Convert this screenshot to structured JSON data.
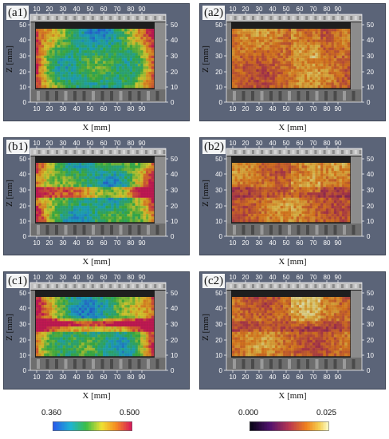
{
  "panels": [
    {
      "id": "a1",
      "label": "(a1)",
      "cmap": "rainbow",
      "variant": 0
    },
    {
      "id": "a2",
      "label": "(a2)",
      "cmap": "inferno",
      "variant": 0
    },
    {
      "id": "b1",
      "label": "(b1)",
      "cmap": "rainbow",
      "variant": 1
    },
    {
      "id": "b2",
      "label": "(b2)",
      "cmap": "inferno",
      "variant": 1
    },
    {
      "id": "c1",
      "label": "(c1)",
      "cmap": "rainbow",
      "variant": 2
    },
    {
      "id": "c2",
      "label": "(c2)",
      "cmap": "inferno",
      "variant": 2
    }
  ],
  "axes": {
    "xlabel": "X [mm]",
    "ylabel": "Z [mm]",
    "x_ticks": [
      "10",
      "20",
      "30",
      "40",
      "50",
      "60",
      "70",
      "80",
      "90"
    ],
    "z_ticks": [
      "0",
      "10",
      "20",
      "30",
      "40",
      "50"
    ]
  },
  "colorbars": [
    {
      "cmap": "rainbow",
      "min": "0.360",
      "max": "0.500"
    },
    {
      "cmap": "inferno",
      "min": "0.000",
      "max": "0.025"
    }
  ],
  "colors": {
    "frame": "#5b6478",
    "background": "#ffffff"
  }
}
